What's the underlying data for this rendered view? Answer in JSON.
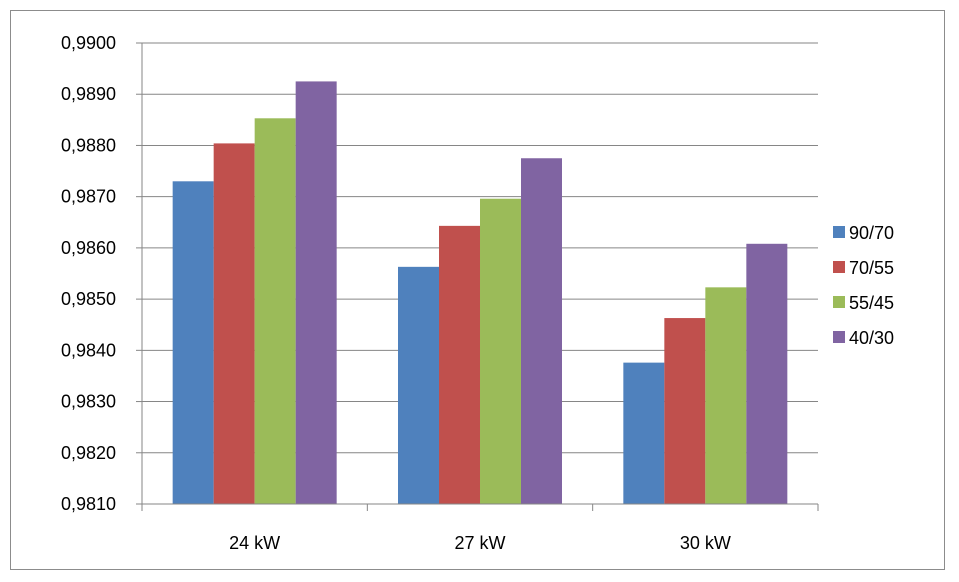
{
  "chart_data": {
    "type": "bar",
    "categories": [
      "24 kW",
      "27 kW",
      "30 kW"
    ],
    "series": [
      {
        "name": "90/70",
        "color": "#4f81bd",
        "values": [
          0.9873,
          0.98563,
          0.98376
        ]
      },
      {
        "name": "70/55",
        "color": "#c0504d",
        "values": [
          0.98804,
          0.98643,
          0.98463
        ]
      },
      {
        "name": "55/45",
        "color": "#9bbb59",
        "values": [
          0.98853,
          0.98696,
          0.98523
        ]
      },
      {
        "name": "40/30",
        "color": "#8064a2",
        "values": [
          0.98925,
          0.98775,
          0.98608
        ]
      }
    ],
    "yticks": [
      "0,9810",
      "0,9820",
      "0,9830",
      "0,9840",
      "0,9850",
      "0,9860",
      "0,9870",
      "0,9880",
      "0,9890",
      "0,9900"
    ],
    "ylim": [
      0.981,
      0.99
    ],
    "ystep": 0.001,
    "grid": true,
    "legend_position": "right"
  }
}
